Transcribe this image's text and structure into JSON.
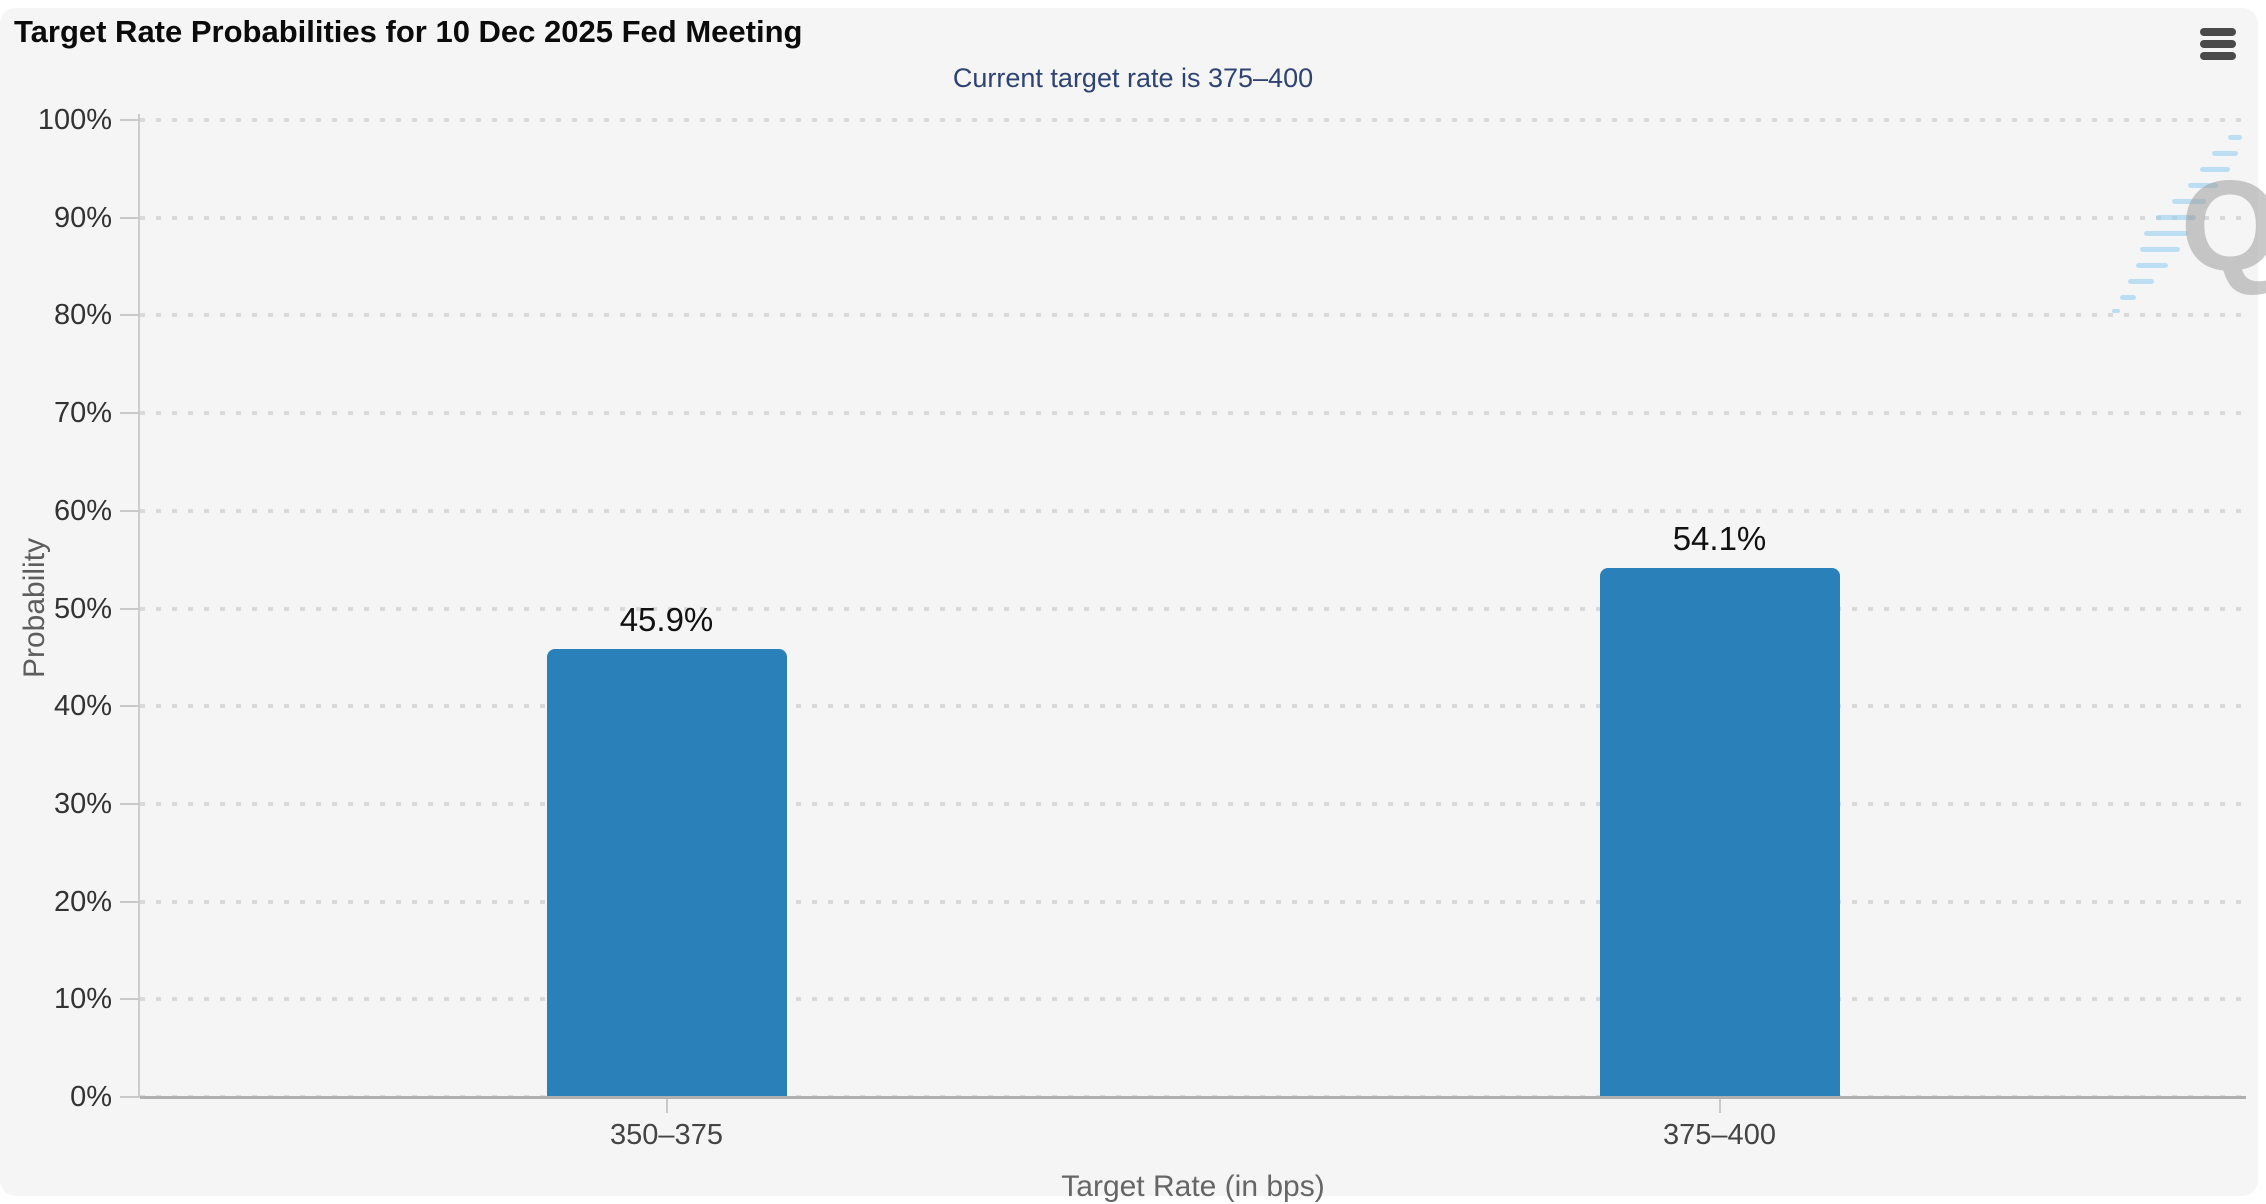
{
  "page": {
    "title": "Target Rate Probabilities for 10 Dec 2025 Fed Meeting",
    "subtitle": "Current target rate is 375–400",
    "menu_icon": "hamburger-menu",
    "watermark_letter": "Q"
  },
  "colors": {
    "background_card": "#f5f5f6",
    "bar": "#2a80b9",
    "subtitle_text": "#2e4372",
    "grid_dot": "#d9d9d9",
    "x_axis_line": "#b0b0b0",
    "y_axis_line": "#cccccc",
    "tick_label": "#333333",
    "axis_title": "#666666",
    "menu_icon": "#4a4a4a"
  },
  "chart_data": {
    "type": "bar",
    "title": "Target Rate Probabilities for 10 Dec 2025 Fed Meeting",
    "subtitle": "Current target rate is 375–400",
    "categories": [
      "350–375",
      "375–400"
    ],
    "values": [
      45.9,
      54.1
    ],
    "value_labels": [
      "45.9%",
      "54.1%"
    ],
    "xlabel": "Target Rate (in bps)",
    "ylabel": "Probability",
    "ylim": [
      0,
      100
    ],
    "ytick_step": 10,
    "ytick_labels": [
      "0%",
      "10%",
      "20%",
      "30%",
      "40%",
      "50%",
      "60%",
      "70%",
      "80%",
      "90%",
      "100%"
    ],
    "grid": "dotted horizontal gridlines",
    "legend": "none",
    "bar_color": "#2a80b9"
  }
}
